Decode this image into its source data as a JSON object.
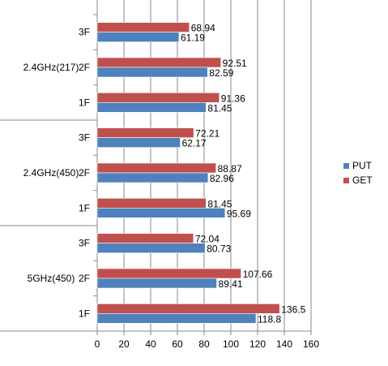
{
  "chart_data": {
    "type": "bar",
    "orientation": "horizontal",
    "groups": [
      "2.4GHz(217)",
      "2.4GHz(450)",
      "5GHz(450)"
    ],
    "categories": [
      {
        "group": "2.4GHz(217)",
        "floor": "3F",
        "label": "3F"
      },
      {
        "group": "2.4GHz(217)",
        "floor": "2F",
        "label": "2F"
      },
      {
        "group": "2.4GHz(217)",
        "floor": "1F",
        "label": "1F"
      },
      {
        "group": "2.4GHz(450)",
        "floor": "3F",
        "label": "3F"
      },
      {
        "group": "2.4GHz(450)",
        "floor": "2F",
        "label": "2F"
      },
      {
        "group": "2.4GHz(450)",
        "floor": "1F",
        "label": "1F"
      },
      {
        "group": "5GHz(450)",
        "floor": "3F",
        "label": "3F"
      },
      {
        "group": "5GHz(450)",
        "floor": "2F",
        "label": "2F"
      },
      {
        "group": "5GHz(450)",
        "floor": "1F",
        "label": "1F"
      }
    ],
    "series": [
      {
        "name": "GET",
        "color": "#c0504d",
        "values": [
          68.94,
          92.51,
          91.36,
          72.21,
          88.87,
          81.45,
          72.04,
          107.66,
          136.5
        ],
        "labels": [
          "68.94",
          "92.51",
          "91.36",
          "72.21",
          "88.87",
          "81.45",
          "72.04",
          "107.66",
          "136.5"
        ]
      },
      {
        "name": "PUT",
        "color": "#4f81bd",
        "values": [
          61.19,
          82.59,
          81.45,
          62.17,
          82.96,
          95.69,
          80.73,
          89.41,
          118.8
        ],
        "labels": [
          "61.19",
          "82.59",
          "81.45",
          "62.17",
          "82.96",
          "95.69",
          "80.73",
          "89.41",
          "118.8"
        ]
      }
    ],
    "xlim": [
      0,
      160
    ],
    "xticks": [
      0,
      20,
      40,
      60,
      80,
      100,
      120,
      140,
      160
    ],
    "grid": true,
    "legend": {
      "position": "right",
      "entries": [
        "PUT",
        "GET"
      ]
    },
    "title": "",
    "xlabel": "",
    "ylabel": ""
  }
}
